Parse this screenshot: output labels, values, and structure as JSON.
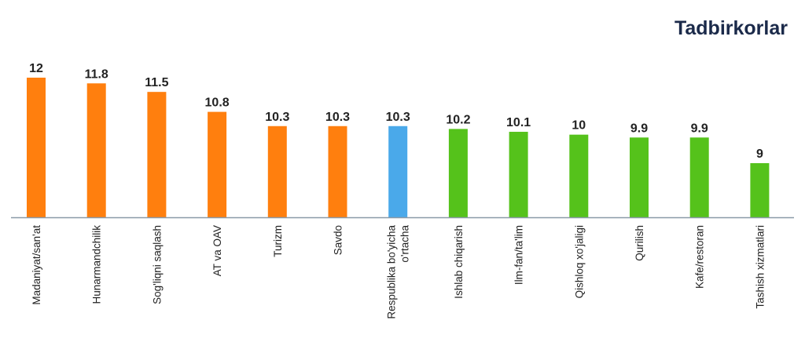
{
  "chart_data": {
    "type": "bar",
    "title": "Tadbirkorlar",
    "xlabel": "",
    "ylabel": "",
    "categories": [
      "Madaniyat/san'at",
      "Hunarmandchilik",
      "Sog'liqni saqlash",
      "AT va OAV",
      "Turizm",
      "Savdo",
      [
        "Respublika bo'yicha",
        "o'rtacha"
      ],
      "Ishlab chiqarish",
      "Ilm-fan/ta'lim",
      "Qishloq xo'jaligi",
      "Qurilish",
      "Kafe/restoran",
      "Tashish xizmatlari"
    ],
    "values": [
      12,
      11.8,
      11.5,
      10.8,
      10.3,
      10.3,
      10.3,
      10.2,
      10.1,
      10,
      9.9,
      9.9,
      9
    ],
    "value_labels": [
      "12",
      "11.8",
      "11.5",
      "10.8",
      "10.3",
      "10.3",
      "10.3",
      "10.2",
      "10.1",
      "10",
      "9.9",
      "9.9",
      "9"
    ],
    "bar_colors": [
      "#ff7f0e",
      "#ff7f0e",
      "#ff7f0e",
      "#ff7f0e",
      "#ff7f0e",
      "#ff7f0e",
      "#4aa9ea",
      "#55c21b",
      "#55c21b",
      "#55c21b",
      "#55c21b",
      "#55c21b",
      "#55c21b"
    ],
    "ylim": [
      7.1,
      12
    ],
    "grid": false,
    "legend": "none"
  },
  "colors": {
    "title": "#1b2a4a",
    "axis": "#8a9aa8",
    "text": "#222222"
  }
}
